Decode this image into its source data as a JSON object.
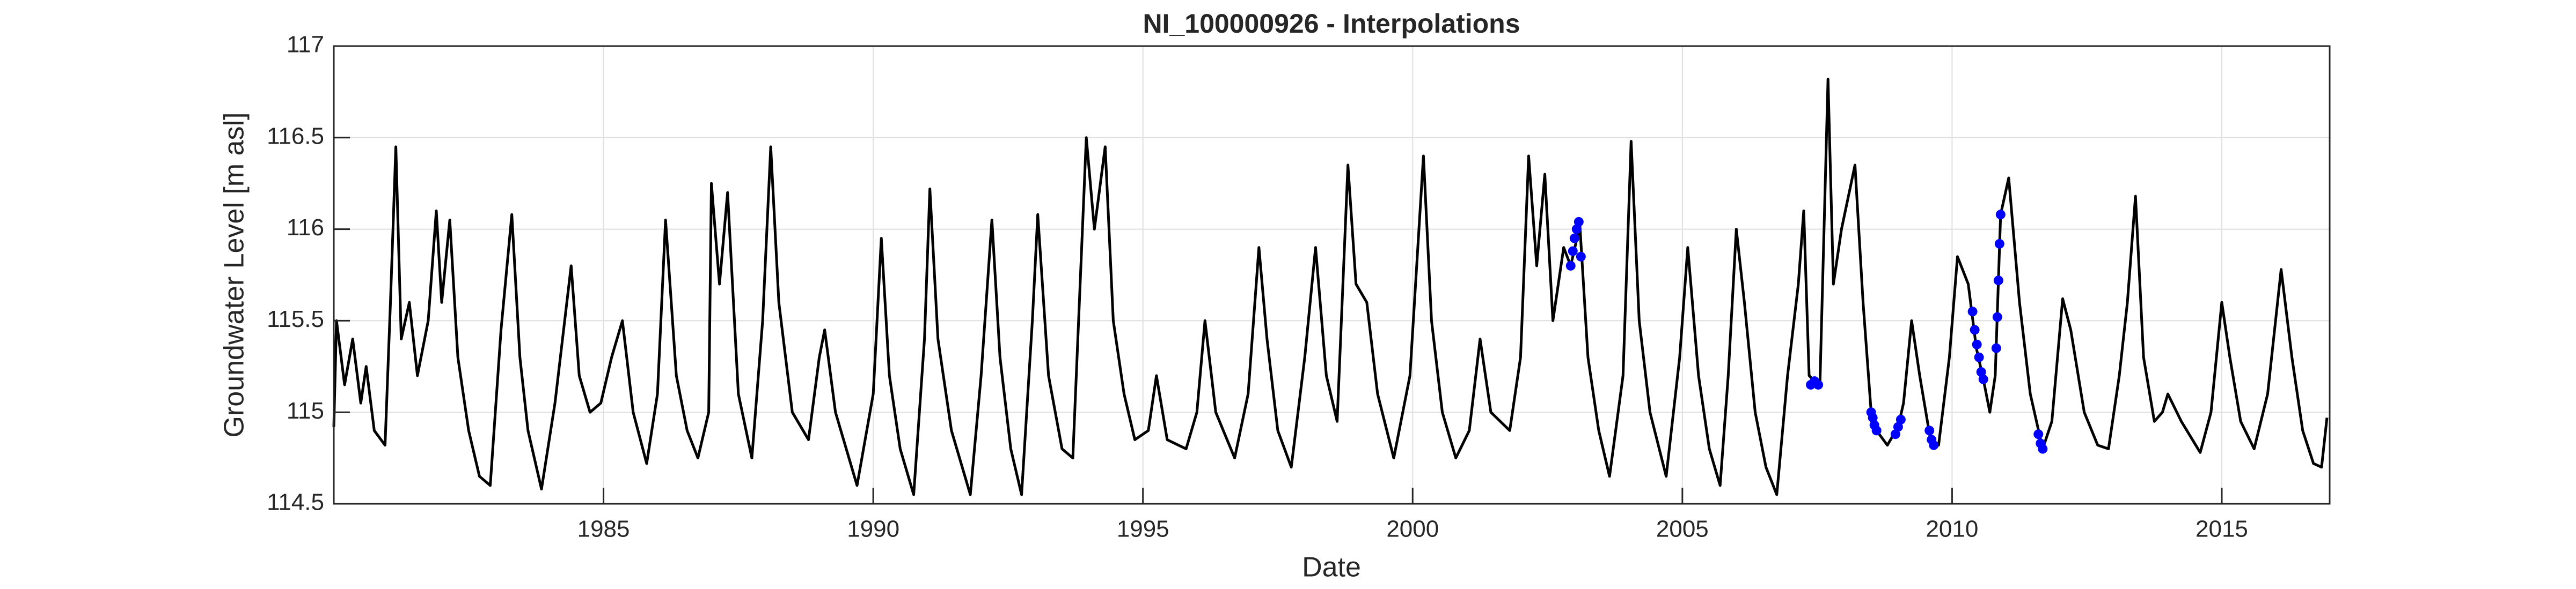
{
  "chart_data": {
    "type": "line",
    "title": "NI_100000926 - Interpolations",
    "xlabel": "Date",
    "ylabel": "Groundwater Level [m asl]",
    "xlim": [
      1980,
      2017
    ],
    "xticks": [
      1985,
      1990,
      1995,
      2000,
      2005,
      2010,
      2015
    ],
    "ylim": [
      114.5,
      117
    ],
    "yticks": [
      114.5,
      115,
      115.5,
      116,
      116.5,
      117
    ],
    "grid": true,
    "series": [
      {
        "color": "#000000",
        "style": "line",
        "x": [
          1980.0,
          1980.05,
          1980.2,
          1980.35,
          1980.5,
          1980.6,
          1980.75,
          1980.95,
          1981.05,
          1981.15,
          1981.25,
          1981.4,
          1981.55,
          1981.75,
          1981.9,
          1982.0,
          1982.15,
          1982.3,
          1982.5,
          1982.7,
          1982.9,
          1983.1,
          1983.3,
          1983.45,
          1983.6,
          1983.85,
          1984.1,
          1984.4,
          1984.55,
          1984.75,
          1984.95,
          1985.15,
          1985.35,
          1985.55,
          1985.8,
          1986.0,
          1986.15,
          1986.35,
          1986.55,
          1986.75,
          1986.95,
          1987.0,
          1987.15,
          1987.3,
          1987.5,
          1987.75,
          1987.95,
          1988.1,
          1988.25,
          1988.5,
          1988.8,
          1989.0,
          1989.1,
          1989.3,
          1989.7,
          1990.0,
          1990.15,
          1990.3,
          1990.5,
          1990.75,
          1990.95,
          1991.05,
          1991.2,
          1991.45,
          1991.8,
          1992.0,
          1992.2,
          1992.35,
          1992.55,
          1992.75,
          1992.95,
          1993.05,
          1993.25,
          1993.5,
          1993.7,
          1993.95,
          1994.1,
          1994.3,
          1994.45,
          1994.65,
          1994.85,
          1995.1,
          1995.25,
          1995.45,
          1995.8,
          1996.0,
          1996.15,
          1996.35,
          1996.7,
          1996.95,
          1997.15,
          1997.3,
          1997.5,
          1997.75,
          1998.0,
          1998.2,
          1998.4,
          1998.6,
          1998.8,
          1998.95,
          1999.15,
          1999.35,
          1999.65,
          1999.95,
          2000.2,
          2000.35,
          2000.55,
          2000.8,
          2001.05,
          2001.25,
          2001.45,
          2001.8,
          2002.0,
          2002.15,
          2002.3,
          2002.45,
          2002.6,
          2002.8,
          2002.93,
          2003.1,
          2003.25,
          2003.45,
          2003.65,
          2003.9,
          2004.05,
          2004.2,
          2004.4,
          2004.7,
          2004.95,
          2005.1,
          2005.3,
          2005.5,
          2005.7,
          2005.85,
          2006.0,
          2006.15,
          2006.35,
          2006.55,
          2006.75,
          2006.95,
          2007.15,
          2007.25,
          2007.35,
          2007.45,
          2007.55,
          2007.7,
          2007.8,
          2007.95,
          2008.2,
          2008.35,
          2008.5,
          2008.6,
          2008.8,
          2009.0,
          2009.1,
          2009.25,
          2009.4,
          2009.6,
          2009.75,
          2009.95,
          2010.1,
          2010.3,
          2010.45,
          2010.58,
          2010.7,
          2010.8,
          2010.9,
          2011.05,
          2011.25,
          2011.45,
          2011.68,
          2011.85,
          2012.05,
          2012.2,
          2012.45,
          2012.7,
          2012.9,
          2013.1,
          2013.25,
          2013.4,
          2013.55,
          2013.75,
          2013.9,
          2014.0,
          2014.25,
          2014.6,
          2014.8,
          2015.0,
          2015.15,
          2015.35,
          2015.6,
          2015.85,
          2016.1,
          2016.3,
          2016.5,
          2016.7,
          2016.85,
          2016.95
        ],
        "values": [
          114.92,
          115.5,
          115.15,
          115.4,
          115.05,
          115.25,
          114.9,
          114.82,
          115.6,
          116.45,
          115.4,
          115.6,
          115.2,
          115.5,
          116.1,
          115.6,
          116.05,
          115.3,
          114.9,
          114.65,
          114.6,
          115.45,
          116.08,
          115.3,
          114.9,
          114.58,
          115.05,
          115.8,
          115.2,
          115.0,
          115.05,
          115.3,
          115.5,
          115.0,
          114.72,
          115.1,
          116.05,
          115.2,
          114.9,
          114.75,
          115.0,
          116.25,
          115.7,
          116.2,
          115.1,
          114.75,
          115.5,
          116.45,
          115.6,
          115.0,
          114.85,
          115.3,
          115.45,
          115.0,
          114.6,
          115.1,
          115.95,
          115.2,
          114.8,
          114.55,
          115.4,
          116.22,
          115.4,
          114.9,
          114.55,
          115.2,
          116.05,
          115.3,
          114.8,
          114.55,
          115.5,
          116.08,
          115.2,
          114.8,
          114.75,
          116.5,
          116.0,
          116.45,
          115.5,
          115.1,
          114.85,
          114.9,
          115.2,
          114.85,
          114.8,
          115.0,
          115.5,
          115.0,
          114.75,
          115.1,
          115.9,
          115.4,
          114.9,
          114.7,
          115.3,
          115.9,
          115.2,
          114.95,
          116.35,
          115.7,
          115.6,
          115.1,
          114.75,
          115.2,
          116.4,
          115.5,
          115.0,
          114.75,
          114.9,
          115.4,
          115.0,
          114.9,
          115.3,
          116.4,
          115.8,
          116.3,
          115.5,
          115.9,
          115.8,
          116.02,
          115.3,
          114.9,
          114.65,
          115.2,
          116.48,
          115.5,
          115.0,
          114.65,
          115.3,
          115.9,
          115.2,
          114.8,
          114.6,
          115.2,
          116.0,
          115.6,
          115.0,
          114.7,
          114.55,
          115.2,
          115.7,
          116.1,
          115.2,
          115.17,
          115.15,
          116.82,
          115.7,
          116.0,
          116.35,
          115.6,
          115.0,
          114.9,
          114.82,
          114.92,
          115.05,
          115.5,
          115.2,
          114.85,
          114.82,
          115.3,
          115.85,
          115.7,
          115.35,
          115.18,
          115.0,
          115.2,
          116.08,
          116.28,
          115.6,
          115.1,
          114.8,
          114.95,
          115.62,
          115.45,
          115.0,
          114.82,
          114.8,
          115.2,
          115.6,
          116.18,
          115.3,
          114.95,
          115.0,
          115.1,
          114.95,
          114.78,
          115.0,
          115.6,
          115.3,
          114.95,
          114.8,
          115.1,
          115.78,
          115.3,
          114.9,
          114.72,
          114.7,
          114.97
        ]
      },
      {
        "color": "#0000ff",
        "style": "dots",
        "x": [
          2002.93,
          2002.97,
          2003.0,
          2003.04,
          2003.08,
          2003.12,
          2007.38,
          2007.45,
          2007.52,
          2008.5,
          2008.53,
          2008.56,
          2008.6,
          2008.95,
          2009.0,
          2009.05,
          2009.58,
          2009.62,
          2009.66,
          2010.38,
          2010.42,
          2010.46,
          2010.5,
          2010.54,
          2010.58,
          2010.82,
          2010.84,
          2010.86,
          2010.88,
          2010.9,
          2011.6,
          2011.64,
          2011.68
        ],
        "values": [
          115.8,
          115.88,
          115.95,
          116.0,
          116.04,
          115.85,
          115.15,
          115.17,
          115.15,
          115.0,
          114.97,
          114.93,
          114.9,
          114.88,
          114.92,
          114.96,
          114.9,
          114.85,
          114.82,
          115.55,
          115.45,
          115.37,
          115.3,
          115.22,
          115.18,
          115.35,
          115.52,
          115.72,
          115.92,
          116.08,
          114.88,
          114.83,
          114.8
        ]
      }
    ]
  }
}
